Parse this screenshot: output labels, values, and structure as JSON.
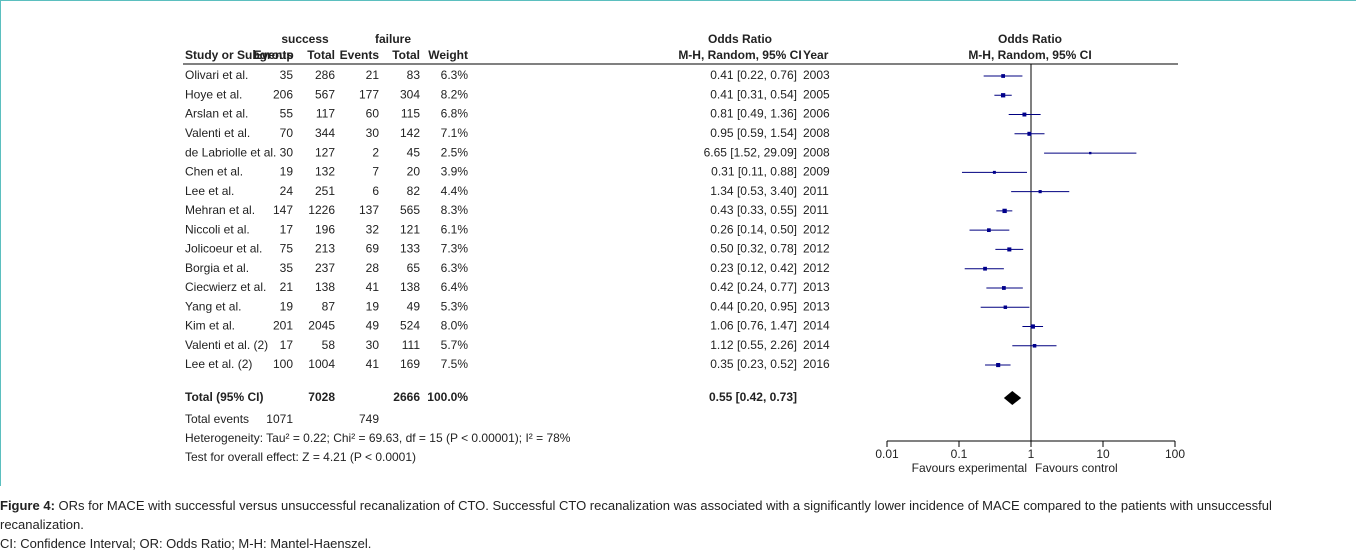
{
  "chart_data": {
    "type": "forest",
    "group_headers": [
      "success",
      "failure"
    ],
    "or_title": "Odds Ratio",
    "plot_title": "Odds Ratio",
    "columns": [
      "Study or Subgroup",
      "Events",
      "Total",
      "Events",
      "Total",
      "Weight",
      "M-H, Random, 95% CI",
      "Year"
    ],
    "plot_method": "M-H, Random, 95% CI",
    "studies": [
      {
        "name": "Olivari et al.",
        "e1": 35,
        "n1": 286,
        "e2": 21,
        "n2": 83,
        "weight": 6.3,
        "weight_label": "6.3%",
        "or": 0.41,
        "lo": 0.22,
        "hi": 0.76,
        "or_label": "0.41 [0.22, 0.76]",
        "year": 2003
      },
      {
        "name": "Hoye et al.",
        "e1": 206,
        "n1": 567,
        "e2": 177,
        "n2": 304,
        "weight": 8.2,
        "weight_label": "8.2%",
        "or": 0.41,
        "lo": 0.31,
        "hi": 0.54,
        "or_label": "0.41 [0.31, 0.54]",
        "year": 2005
      },
      {
        "name": "Arslan et al.",
        "e1": 55,
        "n1": 117,
        "e2": 60,
        "n2": 115,
        "weight": 6.8,
        "weight_label": "6.8%",
        "or": 0.81,
        "lo": 0.49,
        "hi": 1.36,
        "or_label": "0.81 [0.49, 1.36]",
        "year": 2006
      },
      {
        "name": "Valenti et al.",
        "e1": 70,
        "n1": 344,
        "e2": 30,
        "n2": 142,
        "weight": 7.1,
        "weight_label": "7.1%",
        "or": 0.95,
        "lo": 0.59,
        "hi": 1.54,
        "or_label": "0.95 [0.59, 1.54]",
        "year": 2008
      },
      {
        "name": "de Labriolle et al.",
        "e1": 30,
        "n1": 127,
        "e2": 2,
        "n2": 45,
        "weight": 2.5,
        "weight_label": "2.5%",
        "or": 6.65,
        "lo": 1.52,
        "hi": 29.09,
        "or_label": "6.65 [1.52, 29.09]",
        "year": 2008
      },
      {
        "name": "Chen et al.",
        "e1": 19,
        "n1": 132,
        "e2": 7,
        "n2": 20,
        "weight": 3.9,
        "weight_label": "3.9%",
        "or": 0.31,
        "lo": 0.11,
        "hi": 0.88,
        "or_label": "0.31 [0.11, 0.88]",
        "year": 2009
      },
      {
        "name": "Lee et al.",
        "e1": 24,
        "n1": 251,
        "e2": 6,
        "n2": 82,
        "weight": 4.4,
        "weight_label": "4.4%",
        "or": 1.34,
        "lo": 0.53,
        "hi": 3.4,
        "or_label": "1.34 [0.53, 3.40]",
        "year": 2011
      },
      {
        "name": "Mehran et al.",
        "e1": 147,
        "n1": 1226,
        "e2": 137,
        "n2": 565,
        "weight": 8.3,
        "weight_label": "8.3%",
        "or": 0.43,
        "lo": 0.33,
        "hi": 0.55,
        "or_label": "0.43 [0.33, 0.55]",
        "year": 2011
      },
      {
        "name": "Niccoli et al.",
        "e1": 17,
        "n1": 196,
        "e2": 32,
        "n2": 121,
        "weight": 6.1,
        "weight_label": "6.1%",
        "or": 0.26,
        "lo": 0.14,
        "hi": 0.5,
        "or_label": "0.26 [0.14, 0.50]",
        "year": 2012
      },
      {
        "name": "Jolicoeur et al.",
        "e1": 75,
        "n1": 213,
        "e2": 69,
        "n2": 133,
        "weight": 7.3,
        "weight_label": "7.3%",
        "or": 0.5,
        "lo": 0.32,
        "hi": 0.78,
        "or_label": "0.50 [0.32, 0.78]",
        "year": 2012
      },
      {
        "name": "Borgia et al.",
        "e1": 35,
        "n1": 237,
        "e2": 28,
        "n2": 65,
        "weight": 6.3,
        "weight_label": "6.3%",
        "or": 0.23,
        "lo": 0.12,
        "hi": 0.42,
        "or_label": "0.23 [0.12, 0.42]",
        "year": 2012
      },
      {
        "name": "Ciecwierz et al.",
        "e1": 21,
        "n1": 138,
        "e2": 41,
        "n2": 138,
        "weight": 6.4,
        "weight_label": "6.4%",
        "or": 0.42,
        "lo": 0.24,
        "hi": 0.77,
        "or_label": "0.42 [0.24, 0.77]",
        "year": 2013
      },
      {
        "name": "Yang et al.",
        "e1": 19,
        "n1": 87,
        "e2": 19,
        "n2": 49,
        "weight": 5.3,
        "weight_label": "5.3%",
        "or": 0.44,
        "lo": 0.2,
        "hi": 0.95,
        "or_label": "0.44 [0.20, 0.95]",
        "year": 2013
      },
      {
        "name": "Kim et al.",
        "e1": 201,
        "n1": 2045,
        "e2": 49,
        "n2": 524,
        "weight": 8.0,
        "weight_label": "8.0%",
        "or": 1.06,
        "lo": 0.76,
        "hi": 1.47,
        "or_label": "1.06 [0.76, 1.47]",
        "year": 2014
      },
      {
        "name": "Valenti et al. (2)",
        "e1": 17,
        "n1": 58,
        "e2": 30,
        "n2": 111,
        "weight": 5.7,
        "weight_label": "5.7%",
        "or": 1.12,
        "lo": 0.55,
        "hi": 2.26,
        "or_label": "1.12 [0.55, 2.26]",
        "year": 2014
      },
      {
        "name": "Lee et al. (2)",
        "e1": 100,
        "n1": 1004,
        "e2": 41,
        "n2": 169,
        "weight": 7.5,
        "weight_label": "7.5%",
        "or": 0.35,
        "lo": 0.23,
        "hi": 0.52,
        "or_label": "0.35 [0.23, 0.52]",
        "year": 2016
      }
    ],
    "total": {
      "name": "Total (95% CI)",
      "n1": 7028,
      "n2": 2666,
      "weight_label": "100.0%",
      "or": 0.55,
      "lo": 0.42,
      "hi": 0.73,
      "or_label": "0.55 [0.42, 0.73]"
    },
    "total_events": {
      "label": "Total events",
      "e1": 1071,
      "e2": 749
    },
    "heterogeneity": "Heterogeneity: Tau² = 0.22; Chi² = 69.63, df = 15 (P < 0.00001); I² = 78%",
    "overall_test": "Test for overall effect: Z = 4.21 (P < 0.0001)",
    "log_scale": true,
    "xlim": [
      0.01,
      100
    ],
    "xticks": [
      0.01,
      0.1,
      1,
      10,
      100
    ],
    "xlabel_left": "Favours experimental",
    "xlabel_right": "Favours control",
    "marker_color": "#00008b"
  },
  "caption": {
    "label": "Figure 4:",
    "text": "ORs for MACE with successful versus unsuccessful recanalization of CTO. Successful CTO recanalization was associated with a significantly lower incidence of MACE compared to the patients with unsuccessful recanalization.",
    "note": "CI: Confidence Interval; OR: Odds Ratio; M-H: Mantel-Haenszel."
  }
}
